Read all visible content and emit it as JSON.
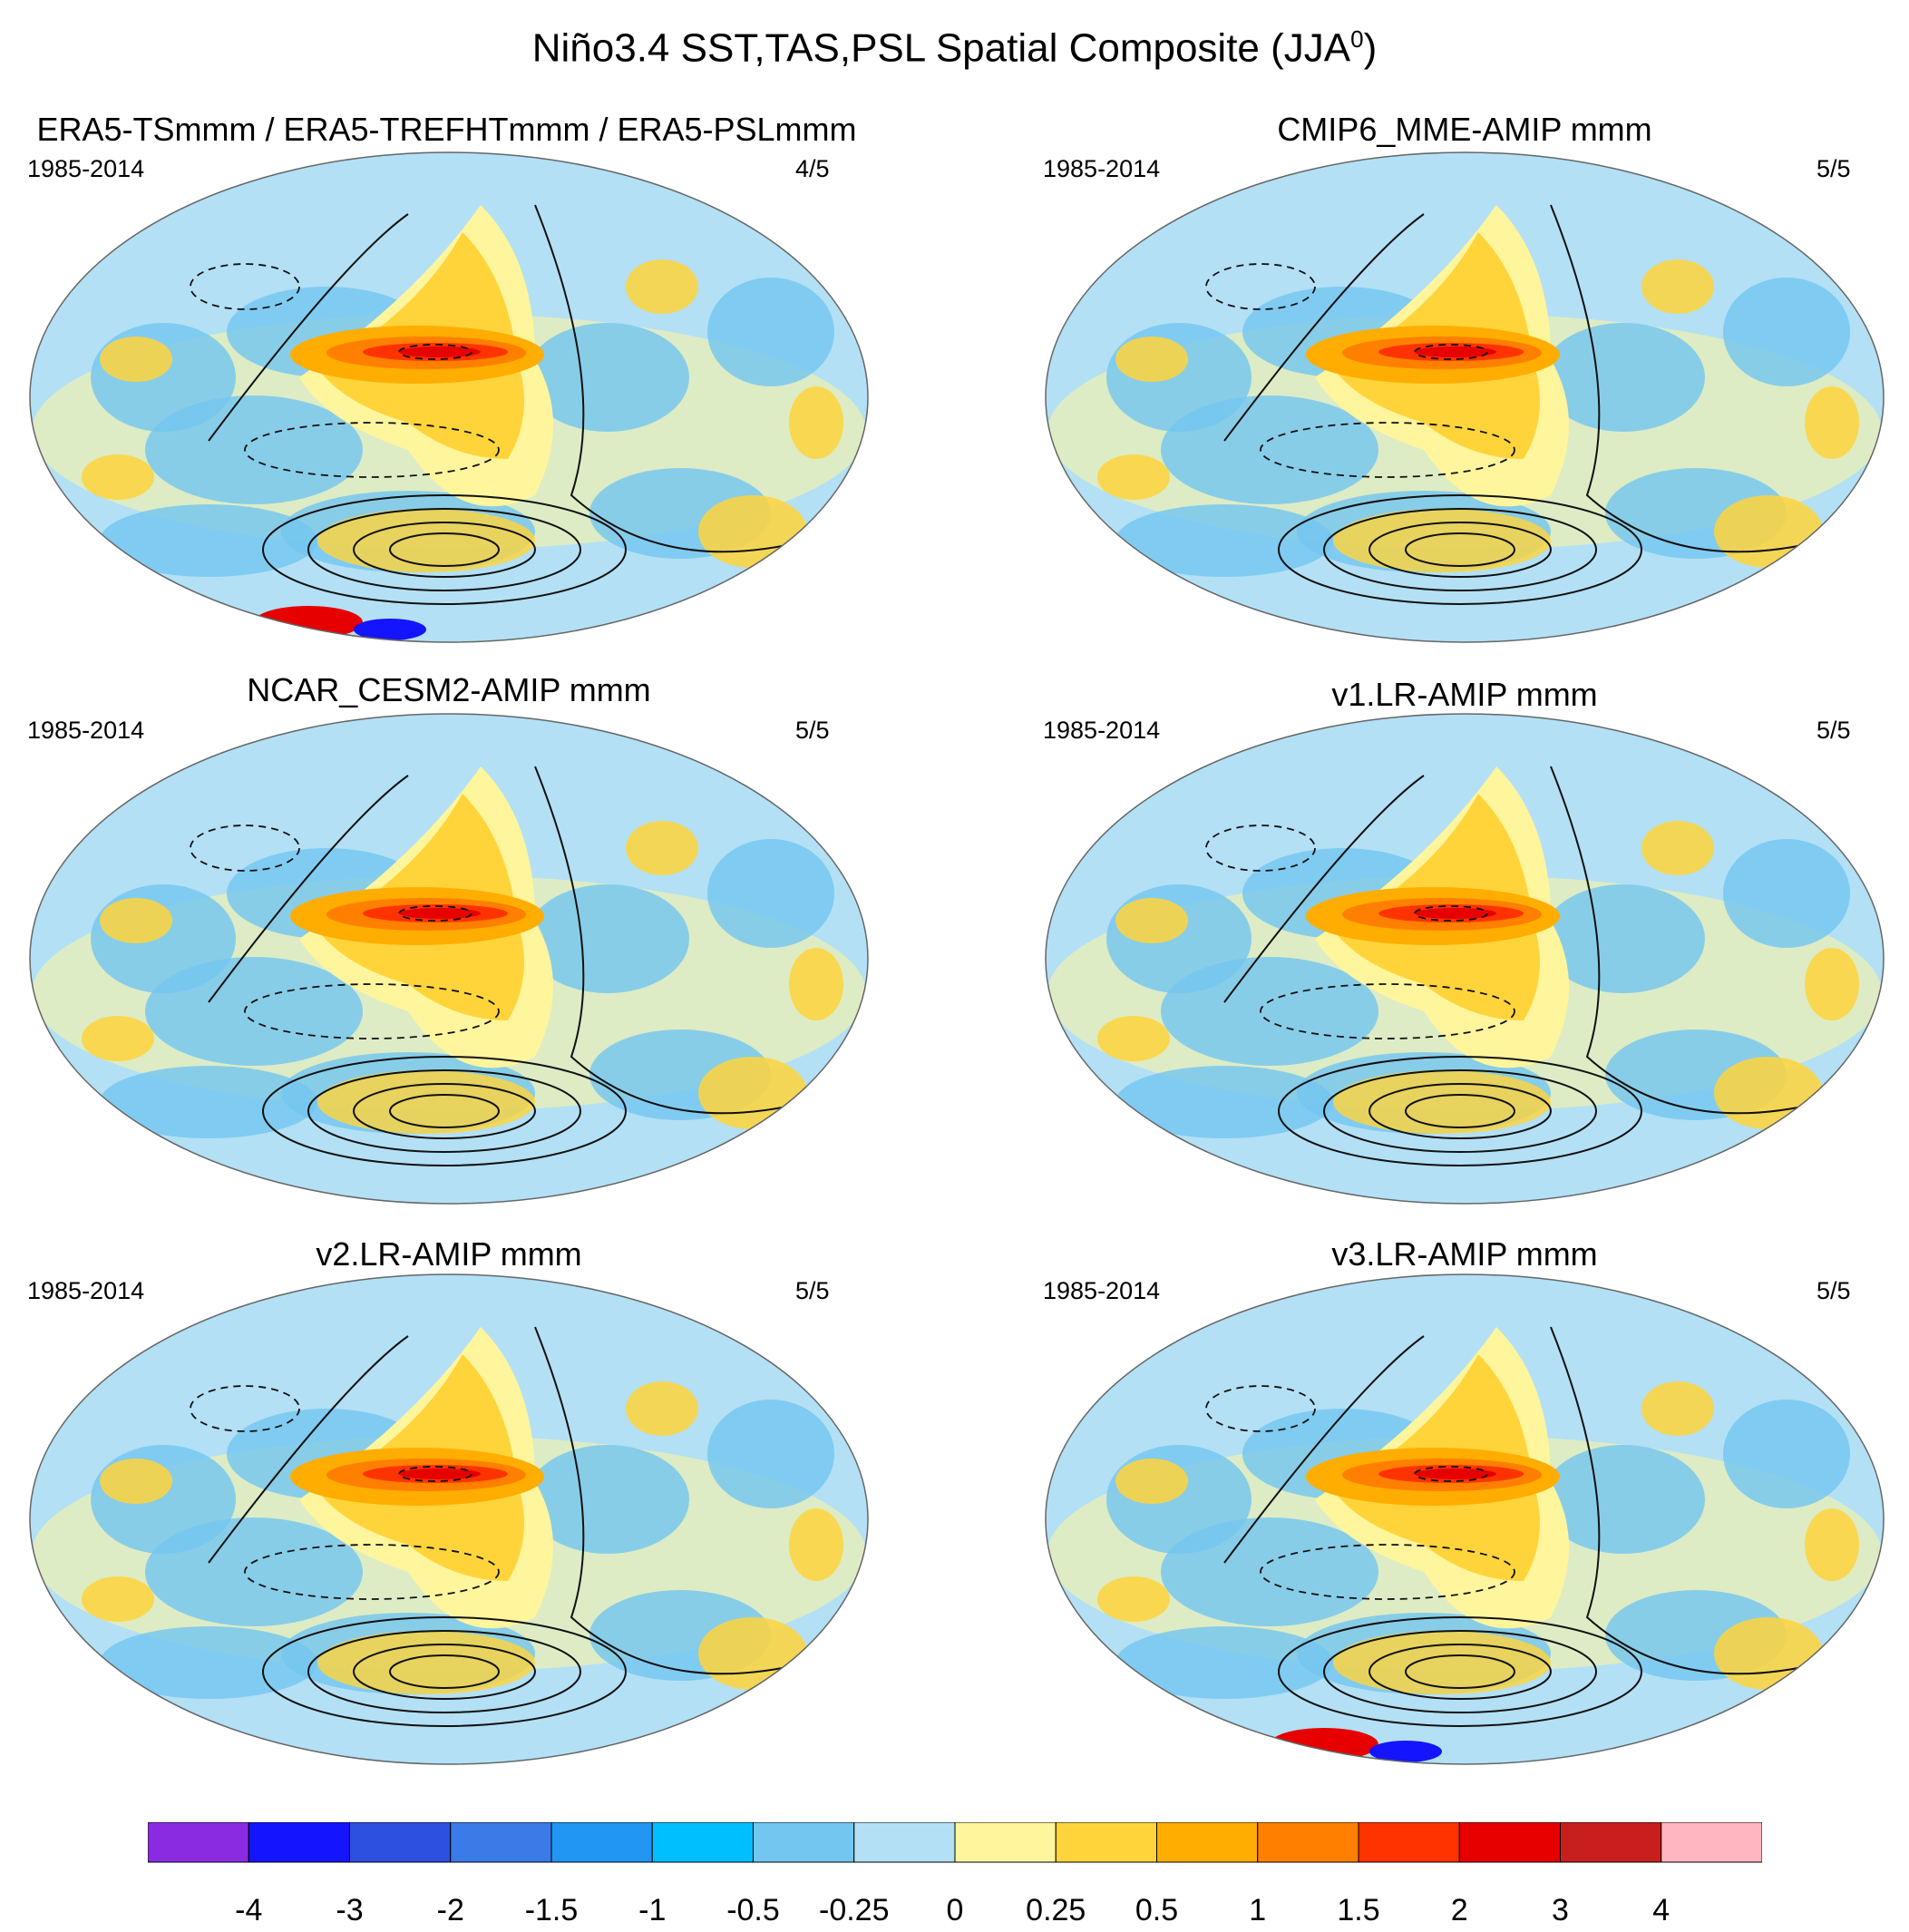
{
  "main_title": "Niño3.4 SST,TAS,PSL Spatial Composite (JJA",
  "main_title_sup": "0",
  "main_title_close": ")",
  "panels": [
    {
      "title": "ERA5-TSmmm / ERA5-TREFHTmmm / ERA5-PSLmmm",
      "period": "1985-2014",
      "count": "4/5"
    },
    {
      "title": "CMIP6_MME-AMIP  mmm",
      "period": "1985-2014",
      "count": "5/5"
    },
    {
      "title": "NCAR_CESM2-AMIP  mmm",
      "period": "1985-2014",
      "count": "5/5"
    },
    {
      "title": "v1.LR-AMIP  mmm",
      "period": "1985-2014",
      "count": "5/5"
    },
    {
      "title": "v2.LR-AMIP  mmm",
      "period": "1985-2014",
      "count": "5/5"
    },
    {
      "title": "v3.LR-AMIP  mmm",
      "period": "1985-2014",
      "count": "5/5"
    }
  ],
  "colorbar": {
    "colors": [
      "#8a2be2",
      "#1414ff",
      "#2d50e0",
      "#3a7be8",
      "#2196f3",
      "#00bfff",
      "#73c6f0",
      "#b3e0f5",
      "#fff59d",
      "#ffd43b",
      "#ffad00",
      "#ff7f00",
      "#ff3300",
      "#e60000",
      "#c81e1e",
      "#ffb6c1"
    ],
    "labels": [
      "-4",
      "-3",
      "-2",
      "-1.5",
      "-1",
      "-0.5",
      "-0.25",
      "0",
      "0.25",
      "0.5",
      "1",
      "1.5",
      "2",
      "3",
      "4"
    ]
  }
}
